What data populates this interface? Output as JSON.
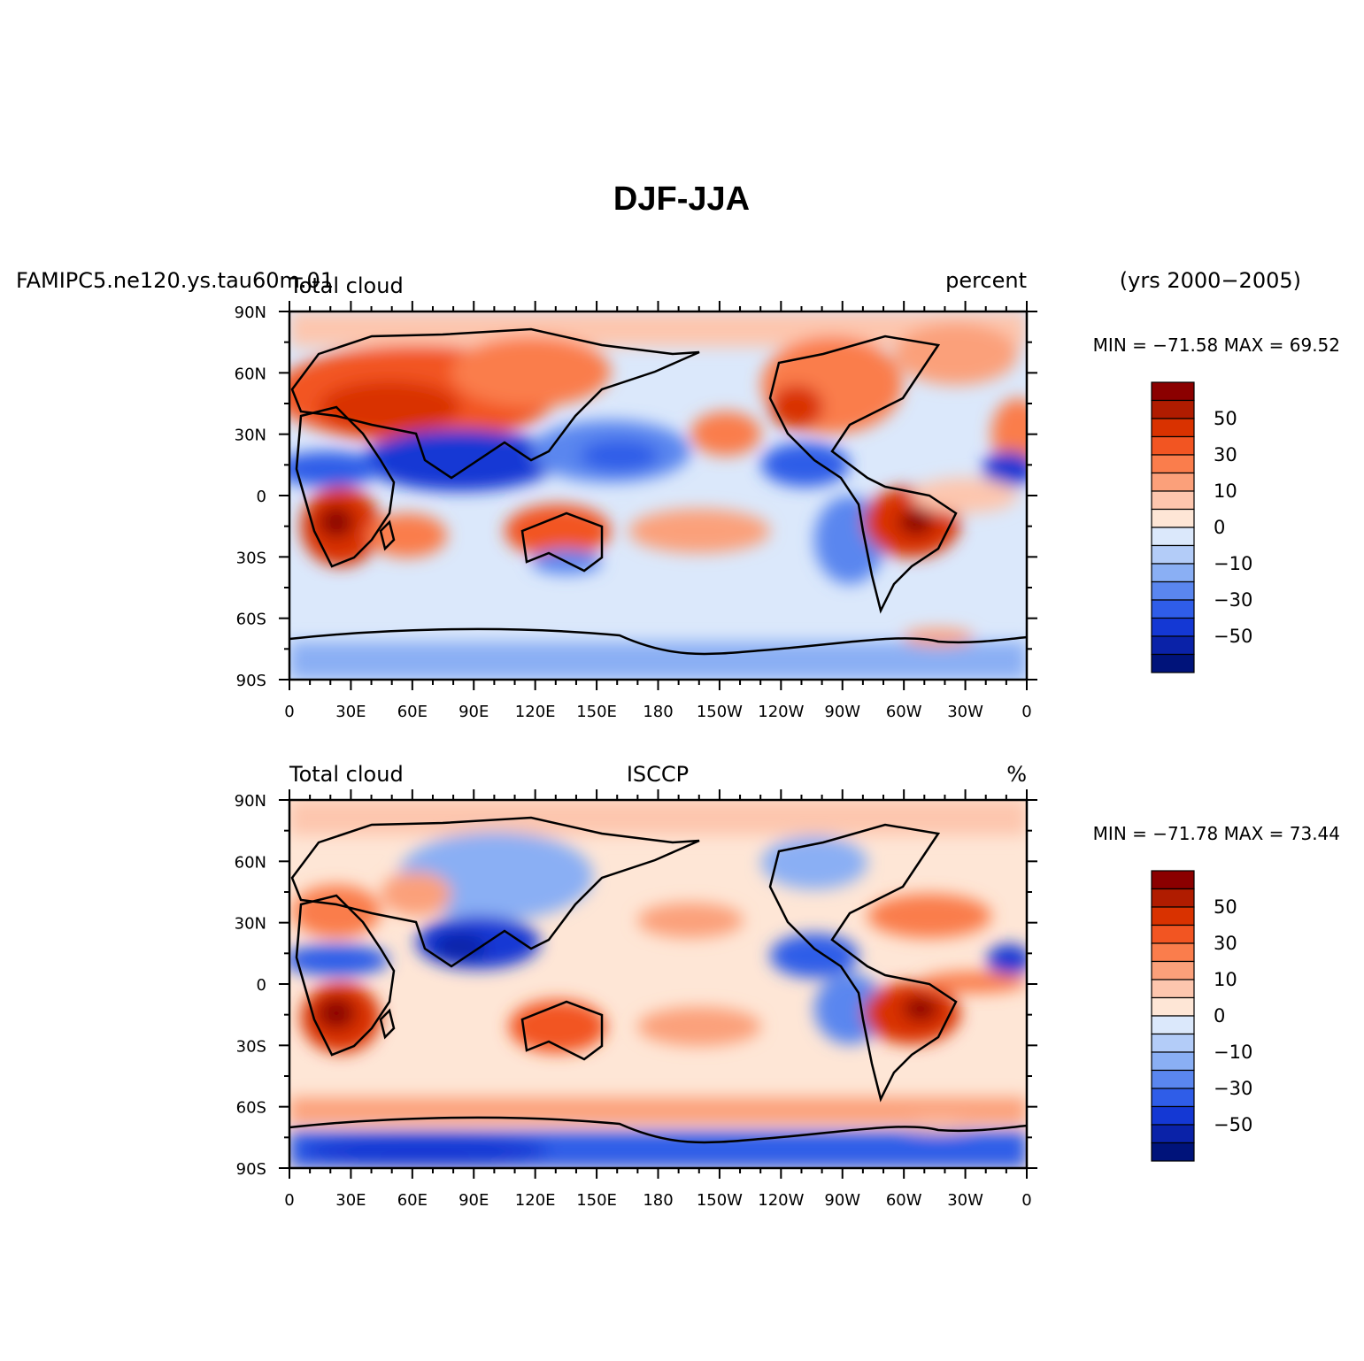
{
  "figure": {
    "title": "DJF-JJA",
    "case_name": "FAMIPC5.ne120.ys.tau60m.01",
    "years": "(yrs 2000−2005)"
  },
  "panels": [
    {
      "left_label": "Total cloud",
      "center_label": "",
      "right_label": "percent",
      "minmax": "MIN = −71.58  MAX =   69.52"
    },
    {
      "left_label": "Total cloud",
      "center_label": "ISCCP",
      "right_label": "%",
      "minmax": "MIN = −71.78  MAX =   73.44"
    }
  ],
  "axes": {
    "lat_ticks": [
      "90N",
      "60N",
      "30N",
      "0",
      "30S",
      "60S",
      "90S"
    ],
    "lon_ticks": [
      "0",
      "30E",
      "60E",
      "90E",
      "120E",
      "150E",
      "180",
      "150W",
      "120W",
      "90W",
      "60W",
      "30W",
      "0"
    ]
  },
  "colorbar": {
    "labels": [
      "50",
      "30",
      "10",
      "0",
      "−10",
      "−30",
      "−50"
    ],
    "colors": [
      "#8b0000",
      "#b01c00",
      "#d93200",
      "#f25522",
      "#fa7d4c",
      "#fba07a",
      "#fdc6ae",
      "#fee6d6",
      "#dbe8fb",
      "#b3ccf8",
      "#8aaff4",
      "#5a86ef",
      "#2f5de8",
      "#1438d4",
      "#0a22a8",
      "#00137a"
    ],
    "levels_note_visible": false
  },
  "colors": {
    "red_high": "#8b0000",
    "red_mid": "#f25522",
    "red_low": "#fdc6ae",
    "blue_low": "#dbe8fb",
    "blue_mid": "#5a86ef",
    "blue_high": "#00137a"
  }
}
